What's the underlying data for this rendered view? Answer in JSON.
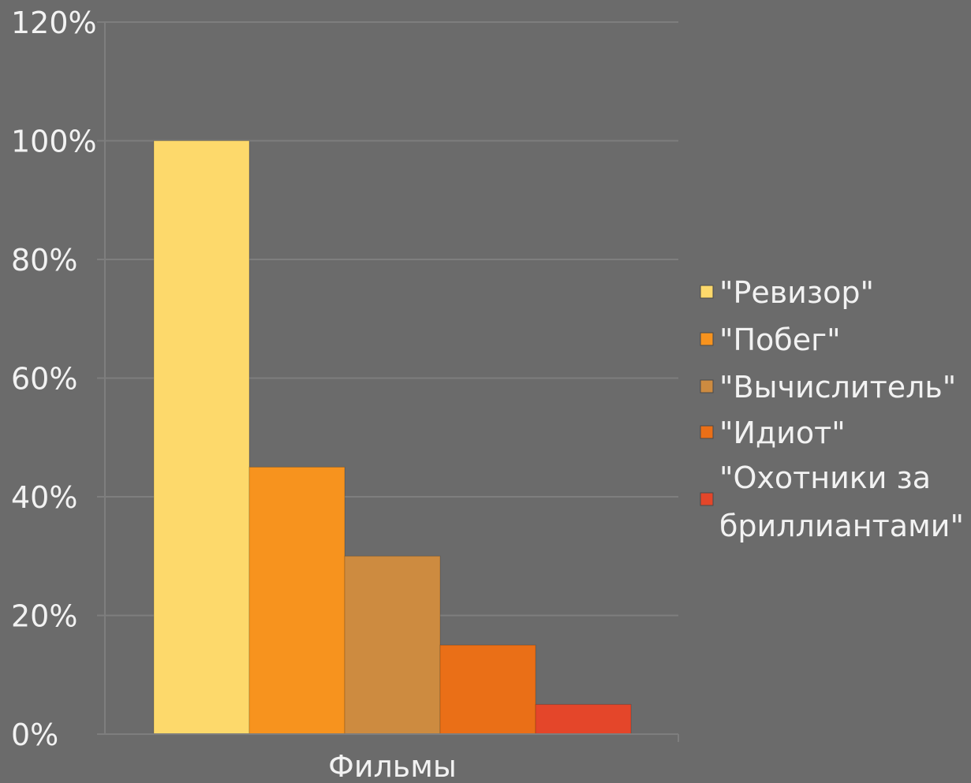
{
  "chart_data": {
    "type": "bar",
    "categories": [
      "Фильмы"
    ],
    "xlabel": "Фильмы",
    "ylabel": "",
    "title": "",
    "ylim": [
      0,
      1.2
    ],
    "yticks": [
      "0%",
      "20%",
      "40%",
      "60%",
      "80%",
      "100%",
      "120%"
    ],
    "grid": true,
    "legend_position": "right",
    "series": [
      {
        "name": "\"Ревизор\"",
        "values": [
          1.0
        ],
        "color": "#fdd96b"
      },
      {
        "name": "\"Побег\"",
        "values": [
          0.45
        ],
        "color": "#f7931e"
      },
      {
        "name": "\"Вычислитель\"",
        "values": [
          0.3
        ],
        "color": "#cd8b40"
      },
      {
        "name": "\"Идиот\"",
        "values": [
          0.15
        ],
        "color": "#ea6f17"
      },
      {
        "name": "\"Охотники за бриллиантами\"",
        "legend_lines": [
          "\"Охотники за",
          "бриллиантами\""
        ],
        "values": [
          0.05
        ],
        "color": "#e4462a"
      }
    ]
  },
  "colors": {
    "background": "#6b6b6b",
    "gridline": "#7e7e7e",
    "text": "#f2f2f2"
  }
}
